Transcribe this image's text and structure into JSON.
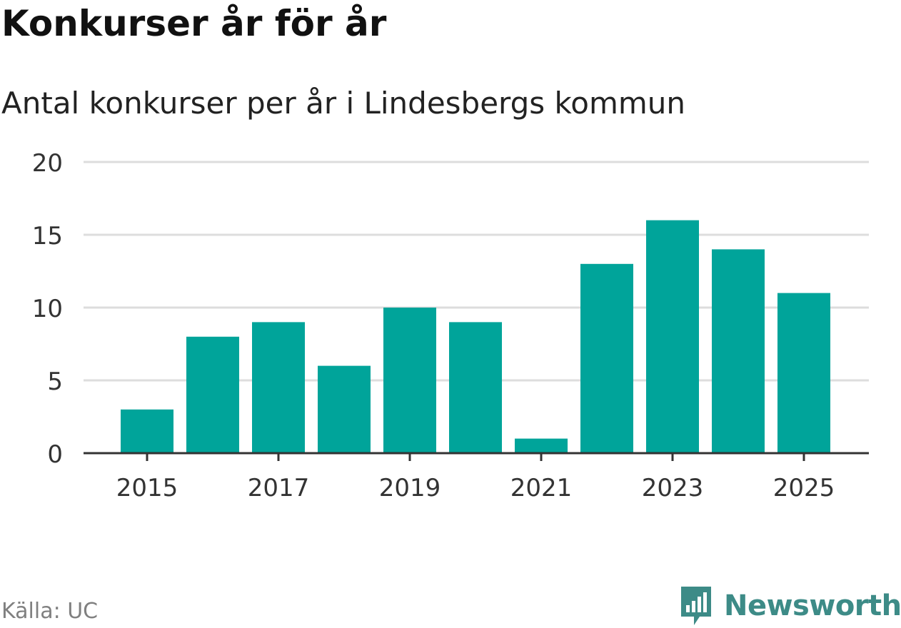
{
  "header": {
    "title": "Konkurser år för år",
    "subtitle": "Antal konkurser per år i Lindesbergs kommun"
  },
  "footer": {
    "source": "Källa: UC",
    "brand": "Newsworthy"
  },
  "colors": {
    "bar": "#00a49a",
    "grid": "#dddddd",
    "axis": "#333333",
    "brand": "#3d8b87"
  },
  "chart_data": {
    "type": "bar",
    "title": "Konkurser år för år",
    "subtitle": "Antal konkurser per år i Lindesbergs kommun",
    "xlabel": "",
    "ylabel": "",
    "categories": [
      "2015",
      "2016",
      "2017",
      "2018",
      "2019",
      "2020",
      "2021",
      "2022",
      "2023",
      "2024",
      "2025"
    ],
    "values": [
      3,
      8,
      9,
      6,
      10,
      9,
      1,
      13,
      16,
      14,
      11
    ],
    "x_tick_labels": [
      "2015",
      "2017",
      "2019",
      "2021",
      "2023",
      "2025"
    ],
    "y_ticks": [
      0,
      5,
      10,
      15,
      20
    ],
    "ylim": [
      0,
      20
    ],
    "grid": true,
    "legend": "none"
  }
}
